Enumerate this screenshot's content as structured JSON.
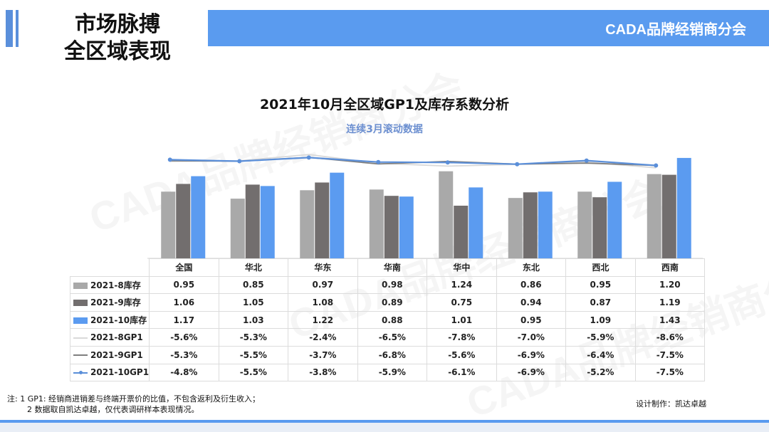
{
  "header": {
    "title_line1": "市场脉搏",
    "title_line2": "全区域表现",
    "brand": "CADA品牌经销商分会"
  },
  "watermark": "CADA品牌经销商分会",
  "colors": {
    "inv8": "#a9a9a9",
    "inv9": "#726e6e",
    "inv10": "#5b9bf0",
    "gp8": "#d9d9d9",
    "gp9": "#7f7f7f",
    "gp10": "#5b8fd9",
    "accent": "#5a9bef"
  },
  "chart_data": {
    "type": "bar+line",
    "title": "2021年10月全区域GP1及库存系数分析",
    "subtitle": "连续3月滚动数据",
    "categories": [
      "全国",
      "华北",
      "华东",
      "华南",
      "华中",
      "东北",
      "西北",
      "西南"
    ],
    "series": [
      {
        "name": "2021-8库存",
        "kind": "bar",
        "values": [
          0.95,
          0.85,
          0.97,
          0.98,
          1.24,
          0.86,
          0.95,
          1.2
        ],
        "display": [
          "0.95",
          "0.85",
          "0.97",
          "0.98",
          "1.24",
          "0.86",
          "0.95",
          "1.20"
        ]
      },
      {
        "name": "2021-9库存",
        "kind": "bar",
        "values": [
          1.06,
          1.05,
          1.08,
          0.89,
          0.75,
          0.94,
          0.87,
          1.19
        ],
        "display": [
          "1.06",
          "1.05",
          "1.08",
          "0.89",
          "0.75",
          "0.94",
          "0.87",
          "1.19"
        ]
      },
      {
        "name": "2021-10库存",
        "kind": "bar",
        "values": [
          1.17,
          1.03,
          1.22,
          0.88,
          1.01,
          0.95,
          1.09,
          1.43
        ],
        "display": [
          "1.17",
          "1.03",
          "1.22",
          "0.88",
          "1.01",
          "0.95",
          "1.09",
          "1.43"
        ]
      },
      {
        "name": "2021-8GP1",
        "kind": "line",
        "values": [
          -5.6,
          -5.3,
          -2.4,
          -6.5,
          -7.8,
          -7.0,
          -5.9,
          -8.6
        ],
        "display": [
          "-5.6%",
          "-5.3%",
          "-2.4%",
          "-6.5%",
          "-7.8%",
          "-7.0%",
          "-5.9%",
          "-8.6%"
        ]
      },
      {
        "name": "2021-9GP1",
        "kind": "line",
        "values": [
          -5.3,
          -5.5,
          -3.7,
          -6.8,
          -5.6,
          -6.9,
          -6.4,
          -7.5
        ],
        "display": [
          "-5.3%",
          "-5.5%",
          "-3.7%",
          "-6.8%",
          "-5.6%",
          "-6.9%",
          "-6.4%",
          "-7.5%"
        ]
      },
      {
        "name": "2021-10GP1",
        "kind": "line",
        "values": [
          -4.8,
          -5.5,
          -3.8,
          -5.9,
          -6.1,
          -6.9,
          -5.2,
          -7.5
        ],
        "display": [
          "-4.8%",
          "-5.5%",
          "-3.8%",
          "-5.9%",
          "-6.1%",
          "-6.9%",
          "-5.2%",
          "-7.5%"
        ]
      }
    ],
    "bar_ylim": [
      0,
      1.5
    ],
    "line_ylim": [
      -10,
      0
    ],
    "legend": "table-left"
  },
  "footnote": {
    "line1": "注: 1 GP1: 经销商进销差与终端开票价的比值，不包含返利及衍生收入；",
    "line2": "2 数据取自凯达卓越，仅代表调研样本表现情况。"
  },
  "credit": "设计制作：凯达卓越"
}
